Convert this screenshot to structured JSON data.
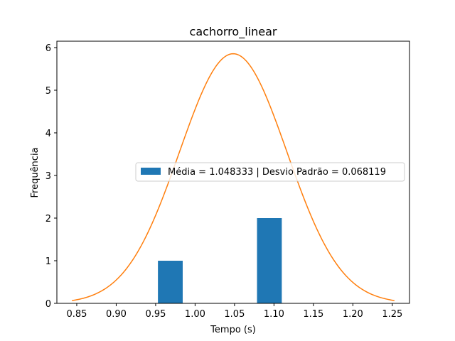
{
  "chart_data": {
    "type": "bar",
    "title": "cachorro_linear",
    "xlabel": "Tempo (s)",
    "ylabel": "Frequência",
    "xlim": [
      0.8248,
      1.2718
    ],
    "ylim": [
      0,
      6.15
    ],
    "xticks": [
      0.85,
      0.9,
      0.95,
      1.0,
      1.05,
      1.1,
      1.15,
      1.2,
      1.25
    ],
    "xtick_labels": [
      "0.85",
      "0.90",
      "0.95",
      "1.00",
      "1.05",
      "1.10",
      "1.15",
      "1.20",
      "1.25"
    ],
    "yticks": [
      0,
      1,
      2,
      3,
      4,
      5,
      6
    ],
    "ytick_labels": [
      "0",
      "1",
      "2",
      "3",
      "4",
      "5",
      "6"
    ],
    "bars": [
      {
        "x0": 0.9529,
        "x1": 0.9685,
        "value": 0
      },
      {
        "x0": 0.9529,
        "x1": 0.9843,
        "value": 1
      },
      {
        "x0": 1.0157,
        "x1": 1.0471,
        "value": 0
      },
      {
        "x0": 1.0785,
        "x1": 1.1099,
        "value": 2
      }
    ],
    "bar_color": "#1f77b4",
    "curve": {
      "kind": "normal-pdf",
      "mean": 1.048333,
      "std": 0.068119,
      "x_range": [
        0.8439,
        1.2527
      ],
      "color": "#ff7f0e"
    },
    "legend": {
      "label": "Média = 1.048333 | Desvio Padrão = 0.068119",
      "placement": "center-right"
    },
    "grid": false
  }
}
